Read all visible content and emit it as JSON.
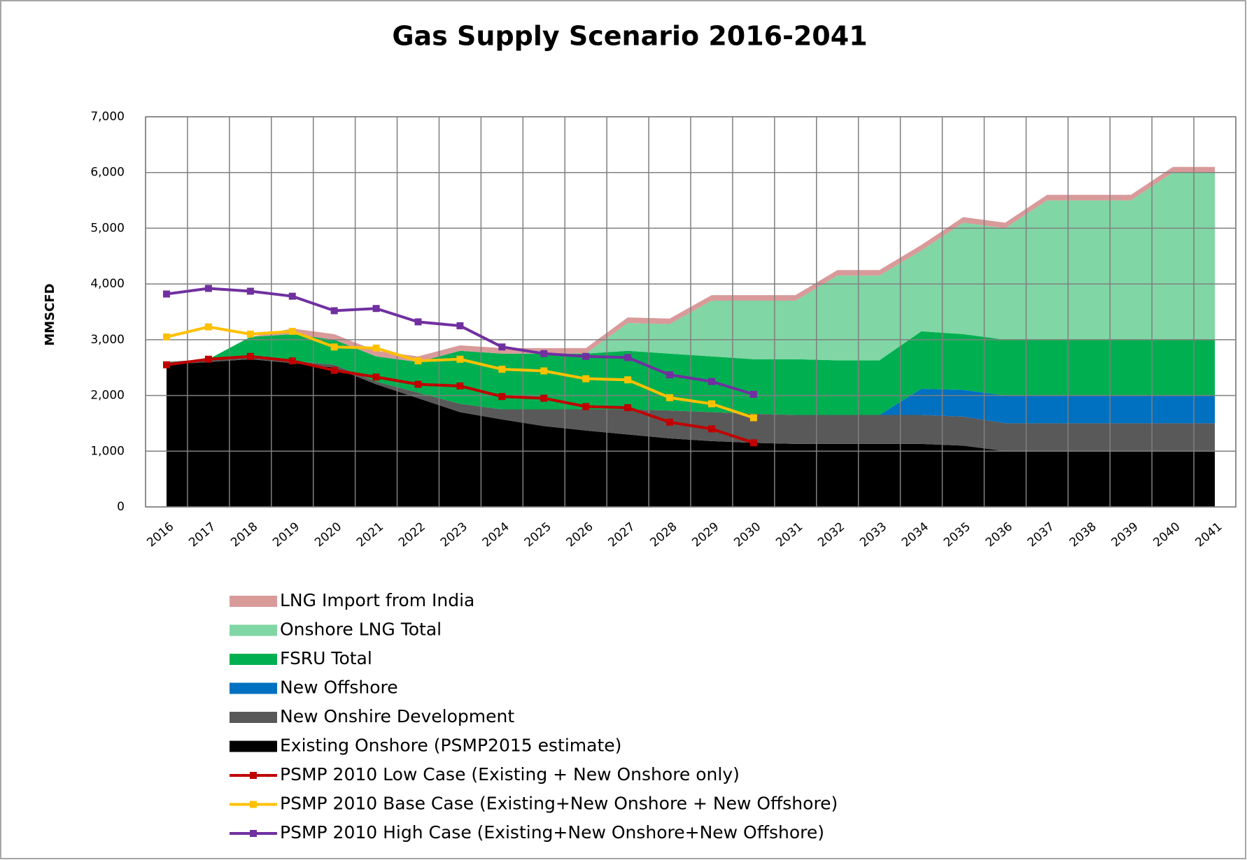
{
  "chart_data": {
    "type": "area",
    "stacked": true,
    "title": "Gas Supply Scenario 2016-2041",
    "y_label": "MMSCFD",
    "categories": [
      "2016",
      "2017",
      "2018",
      "2019",
      "2020",
      "2021",
      "2022",
      "2023",
      "2024",
      "2025",
      "2026",
      "2027",
      "2028",
      "2029",
      "2030",
      "2031",
      "2032",
      "2033",
      "2034",
      "2035",
      "2036",
      "2037",
      "2038",
      "2039",
      "2040",
      "2041"
    ],
    "ylim": [
      0,
      7000
    ],
    "yticks": [
      0,
      {
        "value": 1000,
        "label": "1,000"
      },
      {
        "value": 2000,
        "label": "2,000"
      },
      {
        "value": 3000,
        "label": "3,000"
      },
      {
        "value": 4000,
        "label": "4,000"
      },
      {
        "value": 5000,
        "label": "5,000"
      },
      {
        "value": 6000,
        "label": "6,000"
      },
      {
        "value": 7000,
        "label": "7,000"
      }
    ],
    "grid": true,
    "series": [
      {
        "name": "LNG Import from India",
        "type": "area",
        "color": "#d99a9a",
        "values": [
          0,
          0,
          0,
          100,
          100,
          100,
          100,
          100,
          100,
          100,
          100,
          100,
          100,
          100,
          100,
          100,
          100,
          100,
          100,
          100,
          100,
          100,
          100,
          100,
          100,
          100
        ]
      },
      {
        "name": "Onshore LNG Total",
        "type": "area",
        "color": "#80d6a4",
        "values": [
          0,
          0,
          0,
          0,
          0,
          0,
          0,
          0,
          0,
          0,
          0,
          500,
          530,
          1000,
          1050,
          1050,
          1520,
          1520,
          1450,
          2000,
          2000,
          2500,
          2500,
          2500,
          3000,
          3000
        ]
      },
      {
        "name": "FSRU Total",
        "type": "area",
        "color": "#00b050",
        "values": [
          0,
          0,
          350,
          480,
          450,
          450,
          550,
          950,
          1000,
          1000,
          1000,
          1050,
          1020,
          1000,
          980,
          1000,
          980,
          980,
          1030,
          1000,
          1000,
          1000,
          1000,
          1000,
          1000,
          1000
        ]
      },
      {
        "name": "New Offshore",
        "type": "area",
        "color": "#0070c0",
        "values": [
          0,
          0,
          0,
          0,
          0,
          0,
          0,
          0,
          0,
          0,
          0,
          0,
          0,
          0,
          0,
          0,
          0,
          0,
          470,
          480,
          500,
          500,
          500,
          500,
          500,
          500
        ]
      },
      {
        "name": "New Onshire Development",
        "type": "area",
        "color": "#595959",
        "values": [
          50,
          50,
          50,
          40,
          50,
          50,
          100,
          150,
          180,
          300,
          380,
          450,
          500,
          520,
          520,
          520,
          520,
          520,
          520,
          520,
          500,
          500,
          500,
          500,
          500,
          500
        ]
      },
      {
        "name": "Existing Onshore (PSMP2015 estimate)",
        "type": "area",
        "color": "#000000",
        "values": [
          2550,
          2600,
          2650,
          2580,
          2500,
          2200,
          1950,
          1700,
          1570,
          1450,
          1370,
          1300,
          1230,
          1180,
          1150,
          1130,
          1130,
          1130,
          1130,
          1100,
          1000,
          1000,
          1000,
          1000,
          1000,
          1000
        ]
      },
      {
        "name": "PSMP 2010 Low Case (Existing + New Onshore only)",
        "type": "line",
        "color": "#c00000",
        "values": [
          2550,
          2650,
          2700,
          2620,
          2450,
          2330,
          2200,
          2170,
          1980,
          1950,
          1800,
          1780,
          1520,
          1400,
          1150,
          null,
          null,
          null,
          null,
          null,
          null,
          null,
          null,
          null,
          null,
          null
        ]
      },
      {
        "name": "PSMP 2010 Base Case (Existing+New Onshore + New Offshore)",
        "type": "line",
        "color": "#ffc000",
        "values": [
          3050,
          3230,
          3100,
          3150,
          2870,
          2850,
          2620,
          2650,
          2470,
          2440,
          2300,
          2280,
          1960,
          1850,
          1600,
          null,
          null,
          null,
          null,
          null,
          null,
          null,
          null,
          null,
          null,
          null
        ]
      },
      {
        "name": "PSMP 2010 High Case (Existing+New Onshore+New Offshore)",
        "type": "line",
        "color": "#7030a0",
        "values": [
          3820,
          3920,
          3870,
          3780,
          3520,
          3560,
          3320,
          3250,
          2870,
          2750,
          2700,
          2680,
          2370,
          2250,
          2020,
          null,
          null,
          null,
          null,
          null,
          null,
          null,
          null,
          null,
          null,
          null
        ]
      }
    ]
  }
}
